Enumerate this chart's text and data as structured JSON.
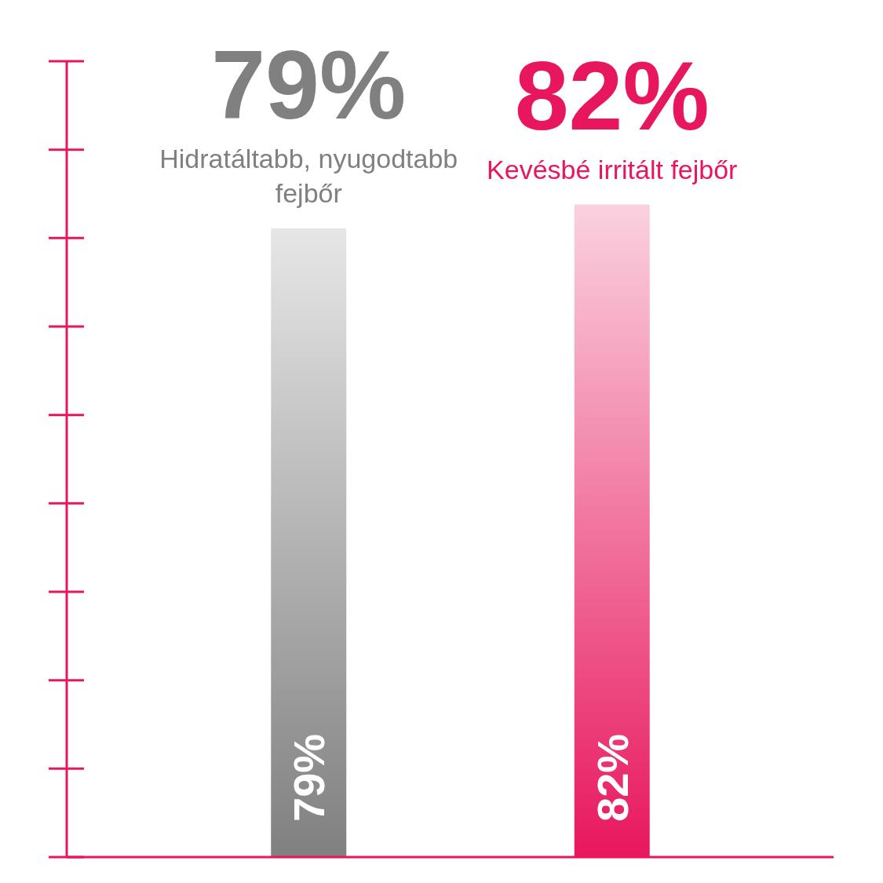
{
  "chart_data": {
    "type": "bar",
    "categories": [
      "Hidratáltabb, nyugodtabb fejbőr",
      "Kevésbé irritált fejbőr"
    ],
    "values": [
      79,
      82
    ],
    "value_labels": [
      "79%",
      "82%"
    ],
    "colors": [
      "#808080",
      "#e8175d"
    ],
    "ylim": [
      0,
      100
    ],
    "tick_labels": "x"
  }
}
